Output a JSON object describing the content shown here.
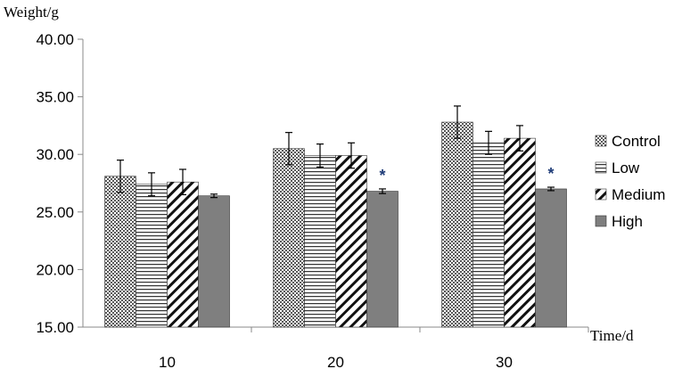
{
  "chart_data": {
    "type": "bar",
    "ylabel": "Weight/g",
    "xlabel": "Time/d",
    "ylim": [
      15,
      40
    ],
    "yticks": [
      "15.00",
      "20.00",
      "25.00",
      "30.00",
      "35.00",
      "40.00"
    ],
    "categories": [
      "10",
      "20",
      "30"
    ],
    "series": [
      {
        "name": "Control",
        "pattern": "dots",
        "values": [
          28.1,
          30.5,
          32.8
        ],
        "errors": [
          1.4,
          1.4,
          1.4
        ]
      },
      {
        "name": "Low",
        "pattern": "horizontal",
        "values": [
          27.4,
          29.9,
          31.0
        ],
        "errors": [
          1.0,
          1.0,
          1.0
        ]
      },
      {
        "name": "Medium",
        "pattern": "diagonal",
        "values": [
          27.6,
          29.9,
          31.4
        ],
        "errors": [
          1.1,
          1.1,
          1.1
        ]
      },
      {
        "name": "High",
        "pattern": "solid",
        "color": "#7f7f7f",
        "values": [
          26.4,
          26.8,
          27.0
        ],
        "errors": [
          0.15,
          0.2,
          0.15
        ]
      }
    ],
    "significance": [
      {
        "category": "20",
        "series": "High",
        "label": "*"
      },
      {
        "category": "30",
        "series": "High",
        "label": "*"
      }
    ],
    "legend_position": "right",
    "grid": false
  }
}
